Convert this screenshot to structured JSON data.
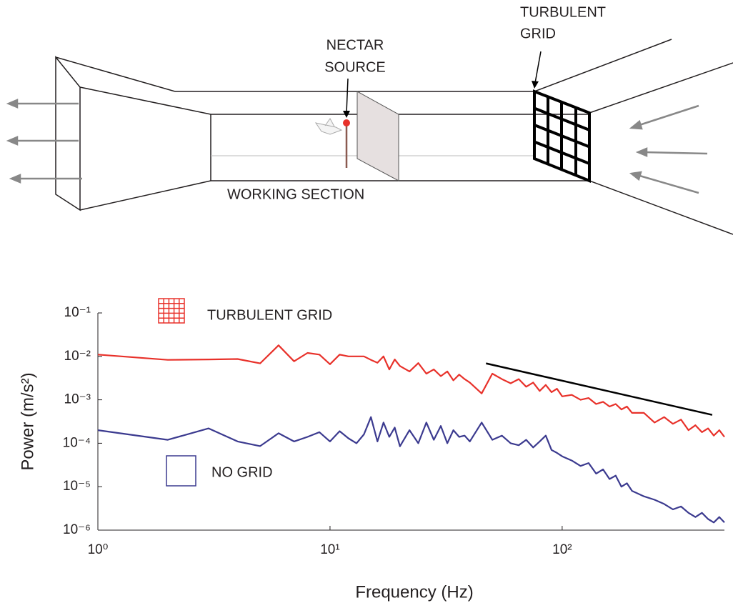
{
  "diagram": {
    "nectar_source": [
      "NECTAR",
      "SOURCE"
    ],
    "turbulent_grid": [
      "TURBULENT",
      "GRID"
    ],
    "working_section": "WORKING SECTION"
  },
  "chart_data": {
    "type": "line",
    "xlabel": "Frequency (Hz)",
    "ylabel": "Power (m/s²)",
    "xscale": "log",
    "yscale": "log",
    "xlim": [
      1,
      500
    ],
    "ylim": [
      1e-06,
      0.1
    ],
    "xticks": [
      {
        "value": 1,
        "label": "10⁰"
      },
      {
        "value": 10,
        "label": "10¹"
      },
      {
        "value": 100,
        "label": "10²"
      }
    ],
    "yticks": [
      {
        "value": 0.1,
        "label": "10⁻¹"
      },
      {
        "value": 0.01,
        "label": "10⁻²"
      },
      {
        "value": 0.001,
        "label": "10⁻³"
      },
      {
        "value": 0.0001,
        "label": "10⁻⁴"
      },
      {
        "value": 1e-05,
        "label": "10⁻⁵"
      },
      {
        "value": 1e-06,
        "label": "10⁻⁶"
      }
    ],
    "x": [
      1,
      2,
      3,
      4,
      5,
      6,
      7,
      8,
      9,
      10,
      11,
      12,
      13,
      14,
      15,
      16,
      17,
      18,
      19,
      20,
      22,
      24,
      26,
      28,
      30,
      32,
      34,
      36,
      38,
      40,
      45,
      50,
      55,
      60,
      65,
      70,
      75,
      80,
      85,
      90,
      95,
      100,
      110,
      120,
      130,
      140,
      150,
      160,
      170,
      180,
      190,
      200,
      225,
      250,
      275,
      300,
      325,
      350,
      375,
      400,
      425,
      450,
      475,
      500
    ],
    "series": [
      {
        "name": "TURBULENT GRID",
        "color": "#e8312a",
        "legend_icon": "grid",
        "values": [
          0.011,
          0.0083,
          0.0085,
          0.0087,
          0.0069,
          0.018,
          0.0077,
          0.012,
          0.011,
          0.0066,
          0.011,
          0.01,
          0.01,
          0.01,
          0.0083,
          0.0071,
          0.01,
          0.005,
          0.0085,
          0.006,
          0.0045,
          0.007,
          0.004,
          0.005,
          0.0035,
          0.0045,
          0.0028,
          0.0038,
          0.003,
          0.0025,
          0.0014,
          0.004,
          0.003,
          0.0024,
          0.003,
          0.002,
          0.0025,
          0.0016,
          0.0022,
          0.0015,
          0.0018,
          0.0012,
          0.0013,
          0.001,
          0.0011,
          0.0008,
          0.0009,
          0.0007,
          0.0008,
          0.0006,
          0.0007,
          0.0005,
          0.0005,
          0.0003,
          0.0004,
          0.00028,
          0.00035,
          0.0002,
          0.00026,
          0.00018,
          0.00022,
          0.00015,
          0.0002,
          0.00014
        ]
      },
      {
        "name": "NO GRID",
        "color": "#3b3a8f",
        "legend_icon": "box",
        "values": [
          0.0002,
          0.00012,
          0.00022,
          0.00011,
          8.6e-05,
          0.00017,
          0.00011,
          0.00014,
          0.00018,
          0.00011,
          0.00019,
          0.00013,
          0.0001,
          0.00016,
          0.0004,
          0.00011,
          0.0003,
          0.00014,
          0.00023,
          8.5e-05,
          0.0002,
          0.0001,
          0.0003,
          0.00012,
          0.00025,
          0.0001,
          0.0002,
          0.00014,
          0.00015,
          0.00011,
          0.0003,
          0.00012,
          0.00015,
          0.0001,
          9e-05,
          0.00012,
          8e-05,
          0.00011,
          0.00015,
          7e-05,
          6e-05,
          5e-05,
          4e-05,
          3e-05,
          3.5e-05,
          2e-05,
          2.5e-05,
          1.5e-05,
          1.8e-05,
          1e-05,
          1.2e-05,
          8e-06,
          6e-06,
          5e-06,
          4e-06,
          3e-06,
          3.5e-06,
          2.5e-06,
          2e-06,
          2.5e-06,
          1.8e-06,
          1.5e-06,
          2e-06,
          1.5e-06
        ]
      }
    ],
    "reference_line": {
      "x": [
        47,
        443
      ],
      "y": [
        0.0069,
        0.00045
      ],
      "color": "#000000"
    }
  }
}
